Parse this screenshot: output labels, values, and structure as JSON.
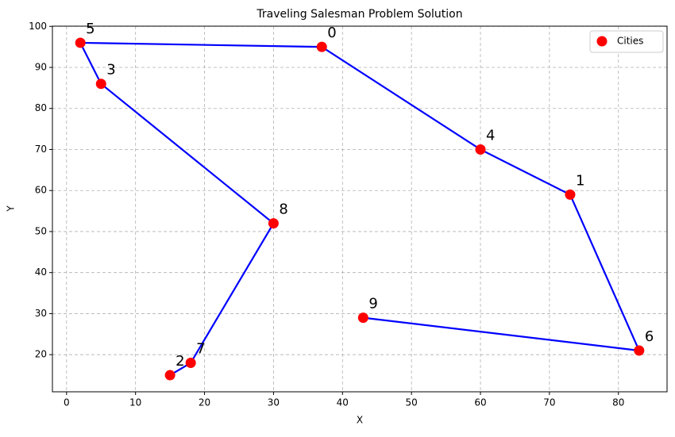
{
  "chart_data": {
    "type": "scatter",
    "title": "Traveling Salesman Problem Solution",
    "x_label": "X",
    "y_label": "Y",
    "series": [
      {
        "name": "Cities",
        "color": "#ff0000",
        "x": [
          37,
          73,
          15,
          5,
          60,
          2,
          83,
          18,
          30,
          43
        ],
        "values": [
          95,
          59,
          15,
          86,
          70,
          96,
          21,
          18,
          52,
          29
        ],
        "labels": [
          "0",
          "1",
          "2",
          "3",
          "4",
          "5",
          "6",
          "7",
          "8",
          "9"
        ]
      }
    ],
    "route": {
      "color": "#0000ff",
      "x": [
        43,
        83,
        73,
        60,
        37,
        2,
        5,
        30,
        18,
        15
      ],
      "values": [
        29,
        21,
        59,
        70,
        95,
        96,
        86,
        52,
        18,
        15
      ]
    },
    "xlim": [
      -2.05,
      87.05
    ],
    "ylim": [
      10.95,
      100.05
    ],
    "xticks": [
      0,
      10,
      20,
      30,
      40,
      50,
      60,
      70,
      80
    ],
    "yticks": [
      20,
      30,
      40,
      50,
      60,
      70,
      80,
      90,
      100
    ],
    "grid": true,
    "legend": "upper right"
  }
}
